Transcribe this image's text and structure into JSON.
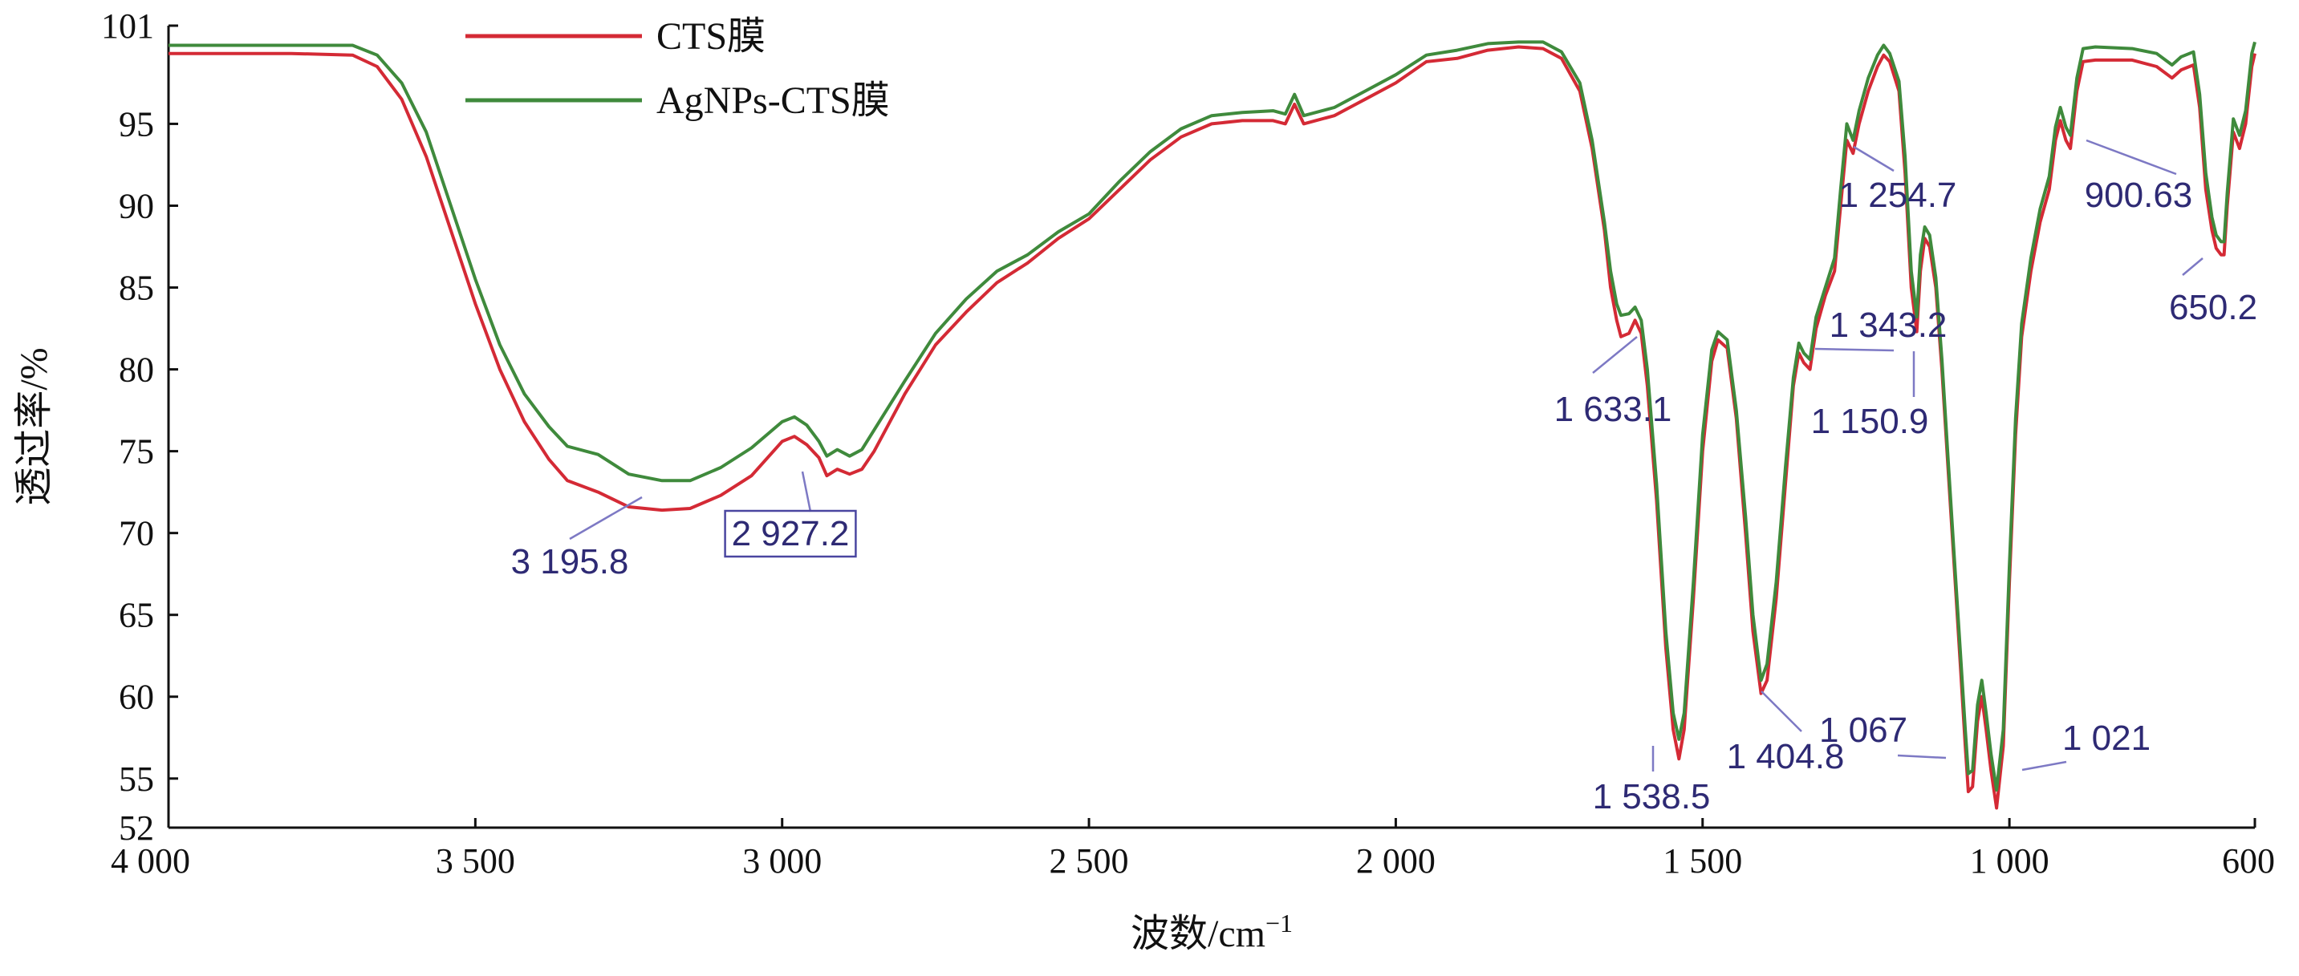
{
  "chart_data": {
    "type": "line",
    "title": "",
    "xlabel": "波数/cm",
    "xlabel_sup": "−1",
    "ylabel": "透过率/%",
    "xlim": [
      4000,
      600
    ],
    "ylim": [
      52,
      101
    ],
    "x_reversed": true,
    "x_ticks": [
      4000,
      3500,
      3000,
      2500,
      2000,
      1500,
      1000,
      600
    ],
    "x_tick_labels": [
      "4 000",
      "3 500",
      "3 000",
      "2 500",
      "2 000",
      "1 500",
      "1 000",
      "600"
    ],
    "y_ticks": [
      52,
      55,
      60,
      65,
      70,
      75,
      80,
      85,
      90,
      95,
      101
    ],
    "y_tick_labels": [
      "52",
      "55",
      "60",
      "65",
      "70",
      "75",
      "80",
      "85",
      "90",
      "95",
      "101"
    ],
    "grid": false,
    "legend_position": "top-left",
    "series": [
      {
        "name": "CTS膜",
        "color": "#d42a35",
        "points": [
          [
            4000,
            99.3
          ],
          [
            3800,
            99.3
          ],
          [
            3700,
            99.2
          ],
          [
            3660,
            98.5
          ],
          [
            3620,
            96.5
          ],
          [
            3580,
            93.0
          ],
          [
            3540,
            88.5
          ],
          [
            3500,
            84.0
          ],
          [
            3460,
            80.0
          ],
          [
            3420,
            76.8
          ],
          [
            3380,
            74.5
          ],
          [
            3350,
            73.2
          ],
          [
            3300,
            72.5
          ],
          [
            3250,
            71.6
          ],
          [
            3195.8,
            71.4
          ],
          [
            3150,
            71.5
          ],
          [
            3100,
            72.3
          ],
          [
            3050,
            73.5
          ],
          [
            3000,
            75.6
          ],
          [
            2980,
            75.9
          ],
          [
            2960,
            75.4
          ],
          [
            2940,
            74.6
          ],
          [
            2927.2,
            73.5
          ],
          [
            2910,
            73.9
          ],
          [
            2890,
            73.6
          ],
          [
            2870,
            73.9
          ],
          [
            2850,
            75.0
          ],
          [
            2800,
            78.5
          ],
          [
            2750,
            81.5
          ],
          [
            2700,
            83.5
          ],
          [
            2650,
            85.3
          ],
          [
            2600,
            86.5
          ],
          [
            2550,
            88.0
          ],
          [
            2500,
            89.2
          ],
          [
            2450,
            91.0
          ],
          [
            2400,
            92.8
          ],
          [
            2350,
            94.2
          ],
          [
            2300,
            95.0
          ],
          [
            2250,
            95.2
          ],
          [
            2200,
            95.2
          ],
          [
            2180,
            95.0
          ],
          [
            2165,
            96.2
          ],
          [
            2150,
            95.0
          ],
          [
            2100,
            95.5
          ],
          [
            2050,
            96.5
          ],
          [
            2000,
            97.5
          ],
          [
            1950,
            98.8
          ],
          [
            1900,
            99.0
          ],
          [
            1850,
            99.5
          ],
          [
            1800,
            99.7
          ],
          [
            1760,
            99.6
          ],
          [
            1730,
            99.0
          ],
          [
            1700,
            97.0
          ],
          [
            1680,
            93.5
          ],
          [
            1660,
            88.5
          ],
          [
            1650,
            85.0
          ],
          [
            1640,
            83.0
          ],
          [
            1633.1,
            82.0
          ],
          [
            1620,
            82.2
          ],
          [
            1610,
            83.0
          ],
          [
            1600,
            82.2
          ],
          [
            1590,
            79.0
          ],
          [
            1575,
            72.0
          ],
          [
            1560,
            63.0
          ],
          [
            1548,
            58.0
          ],
          [
            1538.5,
            56.2
          ],
          [
            1530,
            58.0
          ],
          [
            1515,
            66.0
          ],
          [
            1500,
            75.0
          ],
          [
            1485,
            80.5
          ],
          [
            1475,
            81.8
          ],
          [
            1460,
            81.3
          ],
          [
            1445,
            77.0
          ],
          [
            1430,
            70.0
          ],
          [
            1418,
            64.0
          ],
          [
            1404.8,
            60.2
          ],
          [
            1395,
            61.0
          ],
          [
            1380,
            66.0
          ],
          [
            1365,
            73.0
          ],
          [
            1352,
            79.0
          ],
          [
            1343.2,
            81.0
          ],
          [
            1335,
            80.4
          ],
          [
            1325,
            80.0
          ],
          [
            1315,
            82.5
          ],
          [
            1300,
            84.5
          ],
          [
            1285,
            86.0
          ],
          [
            1275,
            90.0
          ],
          [
            1265,
            94.0
          ],
          [
            1254.7,
            93.2
          ],
          [
            1245,
            95.0
          ],
          [
            1230,
            97.0
          ],
          [
            1215,
            98.5
          ],
          [
            1205,
            99.2
          ],
          [
            1195,
            98.8
          ],
          [
            1180,
            97.0
          ],
          [
            1170,
            92.0
          ],
          [
            1160,
            85.0
          ],
          [
            1150.9,
            82.3
          ],
          [
            1145,
            86.0
          ],
          [
            1138,
            88.0
          ],
          [
            1130,
            87.5
          ],
          [
            1120,
            85.0
          ],
          [
            1110,
            80.0
          ],
          [
            1100,
            74.0
          ],
          [
            1090,
            68.0
          ],
          [
            1080,
            62.0
          ],
          [
            1072,
            57.0
          ],
          [
            1067,
            54.2
          ],
          [
            1060,
            54.5
          ],
          [
            1052,
            58.5
          ],
          [
            1045,
            60.0
          ],
          [
            1038,
            58.0
          ],
          [
            1030,
            55.5
          ],
          [
            1021,
            53.2
          ],
          [
            1010,
            57.0
          ],
          [
            1000,
            67.0
          ],
          [
            990,
            76.0
          ],
          [
            980,
            82.0
          ],
          [
            965,
            86.0
          ],
          [
            950,
            89.0
          ],
          [
            935,
            91.0
          ],
          [
            925,
            94.0
          ],
          [
            917,
            95.2
          ],
          [
            908,
            94.0
          ],
          [
            900.63,
            93.5
          ],
          [
            890,
            97.0
          ],
          [
            880,
            98.8
          ],
          [
            860,
            98.9
          ],
          [
            800,
            98.9
          ],
          [
            760,
            98.5
          ],
          [
            735,
            97.8
          ],
          [
            720,
            98.3
          ],
          [
            700,
            98.6
          ],
          [
            690,
            96.0
          ],
          [
            680,
            91.0
          ],
          [
            670,
            88.5
          ],
          [
            663,
            87.4
          ],
          [
            655,
            87.0
          ],
          [
            650.2,
            87.0
          ],
          [
            645,
            90.0
          ],
          [
            635,
            94.5
          ],
          [
            625,
            93.5
          ],
          [
            615,
            95.0
          ],
          [
            605,
            98.5
          ],
          [
            600,
            99.3
          ]
        ]
      },
      {
        "name": "AgNPs-CTS膜",
        "color": "#3f8a3c",
        "points": [
          [
            4000,
            99.8
          ],
          [
            3800,
            99.8
          ],
          [
            3700,
            99.8
          ],
          [
            3660,
            99.2
          ],
          [
            3620,
            97.5
          ],
          [
            3580,
            94.5
          ],
          [
            3540,
            90.0
          ],
          [
            3500,
            85.5
          ],
          [
            3460,
            81.5
          ],
          [
            3420,
            78.5
          ],
          [
            3380,
            76.5
          ],
          [
            3350,
            75.3
          ],
          [
            3300,
            74.8
          ],
          [
            3250,
            73.6
          ],
          [
            3195.8,
            73.2
          ],
          [
            3150,
            73.2
          ],
          [
            3100,
            74.0
          ],
          [
            3050,
            75.2
          ],
          [
            3000,
            76.8
          ],
          [
            2980,
            77.1
          ],
          [
            2960,
            76.6
          ],
          [
            2940,
            75.6
          ],
          [
            2927.2,
            74.7
          ],
          [
            2910,
            75.1
          ],
          [
            2890,
            74.7
          ],
          [
            2870,
            75.1
          ],
          [
            2850,
            76.3
          ],
          [
            2800,
            79.3
          ],
          [
            2750,
            82.2
          ],
          [
            2700,
            84.3
          ],
          [
            2650,
            86.0
          ],
          [
            2600,
            87.0
          ],
          [
            2550,
            88.4
          ],
          [
            2500,
            89.5
          ],
          [
            2450,
            91.5
          ],
          [
            2400,
            93.3
          ],
          [
            2350,
            94.7
          ],
          [
            2300,
            95.5
          ],
          [
            2250,
            95.7
          ],
          [
            2200,
            95.8
          ],
          [
            2180,
            95.6
          ],
          [
            2165,
            96.8
          ],
          [
            2150,
            95.5
          ],
          [
            2100,
            96.0
          ],
          [
            2050,
            97.0
          ],
          [
            2000,
            98.0
          ],
          [
            1950,
            99.2
          ],
          [
            1900,
            99.5
          ],
          [
            1850,
            99.9
          ],
          [
            1800,
            100.0
          ],
          [
            1760,
            100.0
          ],
          [
            1730,
            99.4
          ],
          [
            1700,
            97.5
          ],
          [
            1680,
            94.0
          ],
          [
            1660,
            89.0
          ],
          [
            1650,
            86.0
          ],
          [
            1640,
            84.0
          ],
          [
            1633.1,
            83.3
          ],
          [
            1620,
            83.4
          ],
          [
            1610,
            83.8
          ],
          [
            1600,
            83.0
          ],
          [
            1590,
            80.0
          ],
          [
            1575,
            73.0
          ],
          [
            1560,
            64.0
          ],
          [
            1548,
            59.0
          ],
          [
            1538.5,
            57.4
          ],
          [
            1530,
            59.0
          ],
          [
            1515,
            67.0
          ],
          [
            1500,
            76.0
          ],
          [
            1485,
            81.2
          ],
          [
            1475,
            82.3
          ],
          [
            1460,
            81.8
          ],
          [
            1445,
            77.5
          ],
          [
            1430,
            71.0
          ],
          [
            1418,
            65.0
          ],
          [
            1404.8,
            61.0
          ],
          [
            1395,
            62.0
          ],
          [
            1380,
            67.0
          ],
          [
            1365,
            74.0
          ],
          [
            1352,
            79.5
          ],
          [
            1343.2,
            81.6
          ],
          [
            1335,
            81.0
          ],
          [
            1325,
            80.6
          ],
          [
            1315,
            83.2
          ],
          [
            1300,
            85.0
          ],
          [
            1285,
            86.8
          ],
          [
            1275,
            91.0
          ],
          [
            1265,
            95.0
          ],
          [
            1254.7,
            94.0
          ],
          [
            1245,
            95.8
          ],
          [
            1230,
            97.8
          ],
          [
            1215,
            99.2
          ],
          [
            1205,
            99.8
          ],
          [
            1195,
            99.3
          ],
          [
            1180,
            97.6
          ],
          [
            1170,
            93.0
          ],
          [
            1160,
            86.0
          ],
          [
            1150.9,
            83.2
          ],
          [
            1145,
            87.0
          ],
          [
            1138,
            88.7
          ],
          [
            1130,
            88.2
          ],
          [
            1120,
            85.6
          ],
          [
            1110,
            80.6
          ],
          [
            1100,
            74.6
          ],
          [
            1090,
            68.6
          ],
          [
            1080,
            62.8
          ],
          [
            1072,
            58.0
          ],
          [
            1067,
            55.3
          ],
          [
            1060,
            55.5
          ],
          [
            1052,
            59.5
          ],
          [
            1045,
            61.0
          ],
          [
            1038,
            59.0
          ],
          [
            1030,
            56.5
          ],
          [
            1021,
            54.3
          ],
          [
            1010,
            58.0
          ],
          [
            1000,
            68.0
          ],
          [
            990,
            77.0
          ],
          [
            980,
            82.8
          ],
          [
            965,
            86.8
          ],
          [
            950,
            89.8
          ],
          [
            935,
            91.8
          ],
          [
            925,
            94.8
          ],
          [
            917,
            96.0
          ],
          [
            908,
            94.8
          ],
          [
            900.63,
            94.3
          ],
          [
            890,
            97.8
          ],
          [
            880,
            99.6
          ],
          [
            860,
            99.7
          ],
          [
            800,
            99.6
          ],
          [
            760,
            99.3
          ],
          [
            735,
            98.6
          ],
          [
            720,
            99.1
          ],
          [
            700,
            99.4
          ],
          [
            690,
            96.8
          ],
          [
            680,
            92.0
          ],
          [
            670,
            89.3
          ],
          [
            663,
            88.2
          ],
          [
            655,
            87.8
          ],
          [
            650.2,
            87.8
          ],
          [
            645,
            90.8
          ],
          [
            635,
            95.3
          ],
          [
            625,
            94.3
          ],
          [
            615,
            95.8
          ],
          [
            605,
            99.3
          ],
          [
            600,
            100.0
          ]
        ]
      }
    ],
    "annotations": [
      {
        "label": "3 195.8",
        "x": 3195.8,
        "y": 71.4,
        "boxed": false
      },
      {
        "label": "2 927.2",
        "x": 2927.2,
        "y": 73.5,
        "boxed": true
      },
      {
        "label": "1 633.1",
        "x": 1633.1,
        "y": 82.0,
        "boxed": false
      },
      {
        "label": "1 538.5",
        "x": 1538.5,
        "y": 56.2,
        "boxed": false
      },
      {
        "label": "1 404.8",
        "x": 1404.8,
        "y": 60.2,
        "boxed": false
      },
      {
        "label": "1 343.2",
        "x": 1343.2,
        "y": 81.0,
        "boxed": false
      },
      {
        "label": "1 254.7",
        "x": 1254.7,
        "y": 93.2,
        "boxed": false
      },
      {
        "label": "1 150.9",
        "x": 1150.9,
        "y": 82.3,
        "boxed": false
      },
      {
        "label": "1 067",
        "x": 1067,
        "y": 54.2,
        "boxed": false
      },
      {
        "label": "1 021",
        "x": 1021,
        "y": 53.2,
        "boxed": false
      },
      {
        "label": "900.63",
        "x": 900.63,
        "y": 93.5,
        "boxed": false
      },
      {
        "label": "650.2",
        "x": 650.2,
        "y": 87.0,
        "boxed": false
      }
    ]
  }
}
